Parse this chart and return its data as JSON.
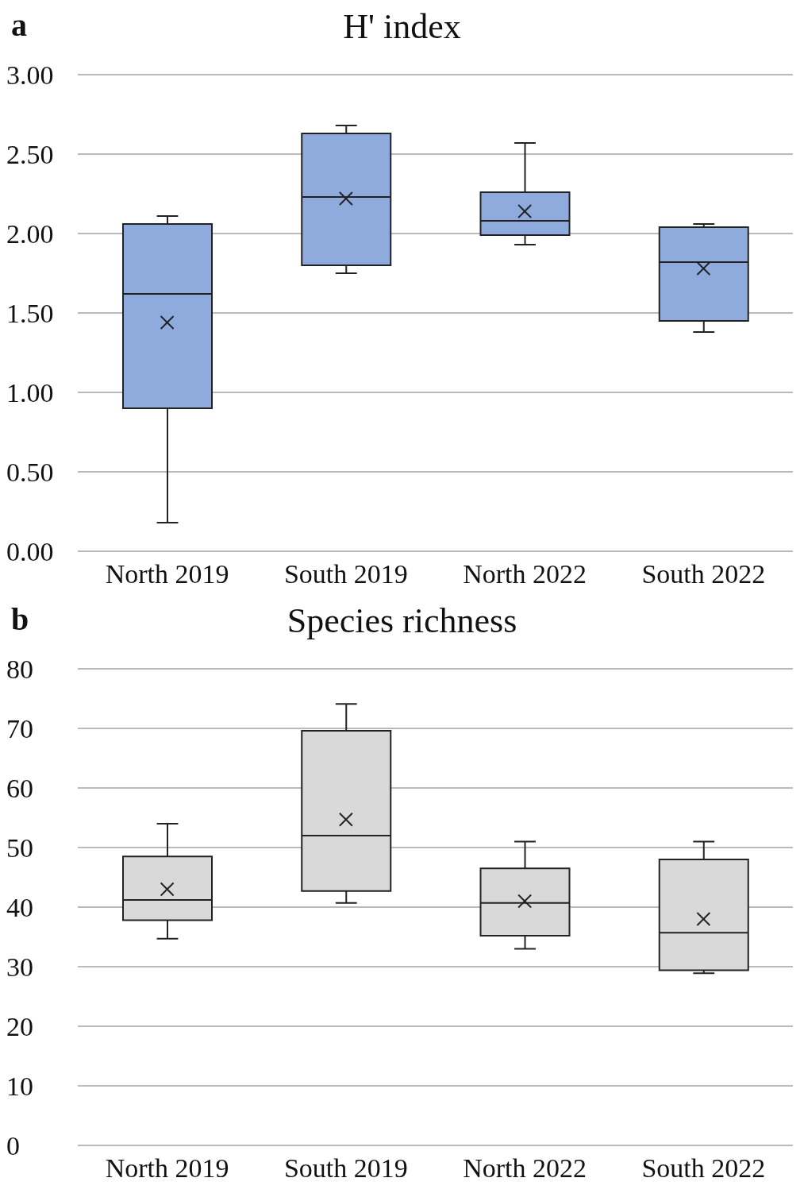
{
  "chart_data": [
    {
      "type": "box",
      "title": "H' index",
      "annotations": [
        "a"
      ],
      "categories": [
        "North 2019",
        "South 2019",
        "North 2022",
        "South 2022"
      ],
      "color": "#8faadc",
      "marker": "cross",
      "grid": "y",
      "ylim": [
        0,
        3
      ],
      "yticks": [
        {
          "value": 0,
          "label": "0.00"
        },
        {
          "value": 0.5,
          "label": "0.50"
        },
        {
          "value": 1,
          "label": "1.00"
        },
        {
          "value": 1.5,
          "label": "1.50"
        },
        {
          "value": 2,
          "label": "2.00"
        },
        {
          "value": 2.5,
          "label": "2.50"
        },
        {
          "value": 3,
          "label": "3.00"
        }
      ],
      "boxes": [
        {
          "low": 0.18,
          "q1": 0.9,
          "median": 1.62,
          "q3": 2.06,
          "high": 2.11,
          "mean": 1.44
        },
        {
          "low": 1.75,
          "q1": 1.8,
          "median": 2.23,
          "q3": 2.63,
          "high": 2.68,
          "mean": 2.22
        },
        {
          "low": 1.93,
          "q1": 1.99,
          "median": 2.08,
          "q3": 2.26,
          "high": 2.57,
          "mean": 2.14
        },
        {
          "low": 1.38,
          "q1": 1.45,
          "median": 1.82,
          "q3": 2.04,
          "high": 2.06,
          "mean": 1.78
        }
      ]
    },
    {
      "type": "box",
      "title": "Species richness",
      "annotations": [
        "b"
      ],
      "categories": [
        "North 2019",
        "South 2019",
        "North 2022",
        "South 2022"
      ],
      "color": "#d9d9d9",
      "marker": "cross",
      "grid": "y",
      "ylim": [
        0,
        80
      ],
      "yticks": [
        0,
        10,
        20,
        30,
        40,
        50,
        60,
        70,
        80
      ],
      "boxes": [
        {
          "low": 34.7,
          "q1": 37.8,
          "median": 41.2,
          "q3": 48.5,
          "high": 54,
          "mean": 43
        },
        {
          "low": 40.7,
          "q1": 42.7,
          "median": 52,
          "q3": 69.6,
          "high": 74.1,
          "mean": 54.7
        },
        {
          "low": 33,
          "q1": 35.2,
          "median": 40.7,
          "q3": 46.5,
          "high": 51,
          "mean": 41
        },
        {
          "low": 28.9,
          "q1": 29.4,
          "median": 35.7,
          "q3": 48,
          "high": 51,
          "mean": 38
        }
      ]
    }
  ]
}
